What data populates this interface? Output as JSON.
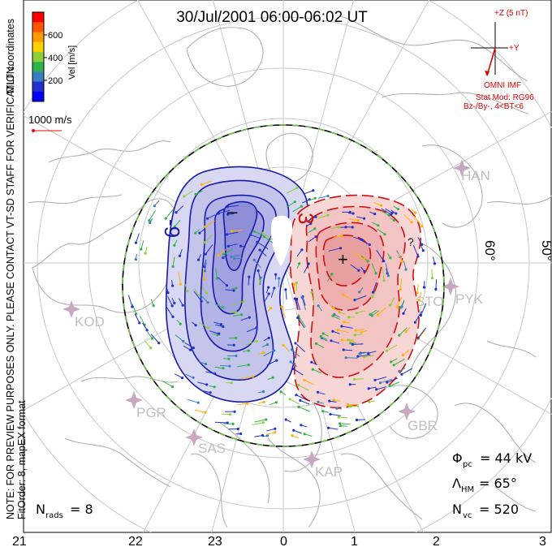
{
  "title": "30/Jul/2001 06:00-06:02 UT",
  "coordinates_label": "MLT coordinates",
  "vertical_note_1": "NOTE: FOR PREVIEW PURPOSES ONLY. PLEASE CONTACT VT-SD STAFF FOR VERIFICATION.",
  "vertical_note_2": "FitOrder: 8, mapEX format",
  "color_scale": {
    "axis_label": "Vel [m/s]",
    "ticks": [
      "600",
      "400",
      "200"
    ],
    "colors": [
      "#ff0000",
      "#ff5500",
      "#ff9900",
      "#ffd000",
      "#8ccf3a",
      "#2fb24a",
      "#3a7fbf",
      "#2233cc",
      "#0000ff"
    ]
  },
  "reference_vector": "1000 m/s",
  "imf": {
    "axis_z": "+Z (5 nT)",
    "axis_y": "+Y",
    "label": "OMNI IMF",
    "model_line_1": "Stat Mod: RG96",
    "model_line_2": "Bz-/By-, 4<BT<6"
  },
  "latitude_labels": [
    "60°",
    "50°"
  ],
  "stations": [
    {
      "name": "HAN"
    },
    {
      "name": "PYK"
    },
    {
      "name": "STO"
    },
    {
      "name": "KOD"
    },
    {
      "name": "PGR"
    },
    {
      "name": "SAS"
    },
    {
      "name": "KAP"
    },
    {
      "name": "GBR"
    }
  ],
  "contour_labels": {
    "negative": "-9",
    "positive": "3",
    "min_marker": "–",
    "max_marker": "+",
    "extra": "?"
  },
  "stats": {
    "phi_symbol": "Φ",
    "phi_sub": "pc",
    "phi_value": "= 44 kV",
    "lambda_symbol": "Λ",
    "lambda_sub": "HM",
    "lambda_value": "= 65°",
    "nvc_symbol": "N",
    "nvc_sub": "vc",
    "nvc_value": "= 520",
    "nrads_symbol": "N",
    "nrads_sub": "rads",
    "nrads_value": "= 8"
  },
  "mlt_ticks": [
    "21",
    "22",
    "23",
    "0",
    "1",
    "2",
    "3"
  ],
  "colors": {
    "negative_fill": "#c8c8ee",
    "negative_line": "#1a1aaa",
    "positive_fill": "#f7c8c8",
    "positive_line": "#cc1111",
    "coast": "#b0b0b0",
    "grid": "#c8c8c8",
    "station": "#c7a8c0",
    "imf_red": "#dd0000"
  }
}
